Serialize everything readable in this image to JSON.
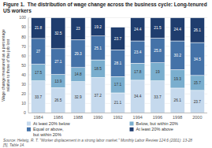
{
  "chart_data": {
    "type": "bar",
    "stacked": true,
    "title": "Figure 1.  The distribution of wage change across the business cycle: Long-tenured US workers",
    "ylabel": "Wage change measured as a percentage\nrelative to those of the job lost",
    "source": "Source: Helwig, R. T. \"Worker displacement in a strong labor market.\" Monthly Labor Review 124:6 (2001): 13-28\n[5], Table 14.",
    "categories": [
      "1984",
      "1986",
      "1988",
      "1990",
      "1992",
      "1994",
      "1996",
      "1998",
      "2000"
    ],
    "series": [
      {
        "name": "At least 20% below",
        "color": "#c5d9ed",
        "values": [
          33.7,
          26.5,
          32.9,
          37.2,
          21.1,
          34.4,
          33.7,
          26.1,
          23.7
        ]
      },
      {
        "name": "Below, but within 20%",
        "color": "#7aaece",
        "values": [
          17.5,
          13.9,
          14.8,
          18.5,
          17.1,
          17.8,
          19.0,
          19.3,
          15.7
        ]
      },
      {
        "name": "Equal or above,\nbut within 20%",
        "color": "#4472a8",
        "values": [
          27.0,
          27.1,
          29.3,
          25.1,
          28.1,
          23.4,
          25.8,
          30.2,
          34.5
        ]
      },
      {
        "name": "At least 20% above",
        "color": "#1f3d6e",
        "values": [
          21.8,
          32.5,
          23.0,
          19.2,
          23.7,
          24.4,
          21.5,
          24.4,
          26.1
        ]
      }
    ],
    "ylim": [
      0,
      100
    ],
    "yticks": [
      0,
      10,
      20,
      30,
      40,
      50,
      60,
      70,
      80,
      90,
      100
    ],
    "grid": true,
    "data_labels": true,
    "legend": "bottom"
  }
}
